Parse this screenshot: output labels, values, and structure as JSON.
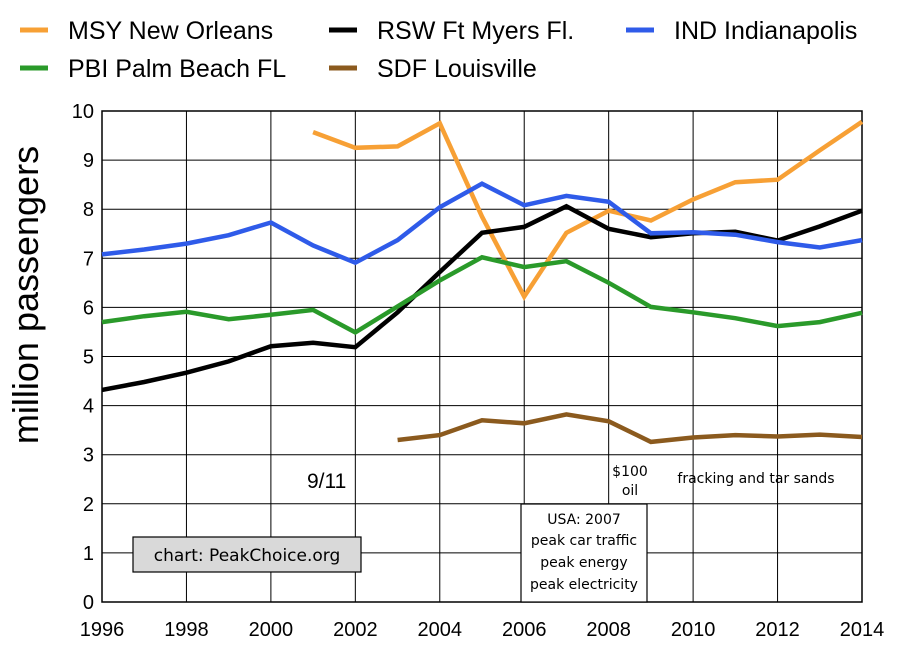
{
  "chart_data": {
    "type": "line",
    "title": "",
    "xlabel": "",
    "ylabel": "million passengers",
    "xlim": [
      1996,
      2014
    ],
    "ylim": [
      0,
      10
    ],
    "x_ticks": [
      "1996",
      "1998",
      "2000",
      "2002",
      "2004",
      "2006",
      "2008",
      "2010",
      "2012",
      "2014"
    ],
    "y_ticks": [
      "0",
      "1",
      "2",
      "3",
      "4",
      "5",
      "6",
      "7",
      "8",
      "9",
      "10"
    ],
    "grid": "vertical and horizontal",
    "legend_placement": "top",
    "series": [
      {
        "name": "MSY New Orleans",
        "color": "#F7A035",
        "x": [
          2001,
          2002,
          2003,
          2004,
          2005,
          2006,
          2007,
          2008,
          2009,
          2010,
          2011,
          2012,
          2013,
          2014
        ],
        "values": [
          9.57,
          9.25,
          9.28,
          9.75,
          7.85,
          6.22,
          7.52,
          7.97,
          7.77,
          8.2,
          8.55,
          8.6,
          9.2,
          9.78
        ]
      },
      {
        "name": "RSW Ft Myers Fl.",
        "color": "#000000",
        "x": [
          1996,
          1997,
          1998,
          1999,
          2000,
          2001,
          2002,
          2003,
          2004,
          2005,
          2006,
          2007,
          2008,
          2009,
          2010,
          2011,
          2012,
          2013,
          2014
        ],
        "values": [
          4.32,
          4.48,
          4.67,
          4.9,
          5.21,
          5.28,
          5.19,
          5.9,
          6.72,
          7.52,
          7.64,
          8.06,
          7.6,
          7.43,
          7.51,
          7.54,
          7.36,
          7.65,
          7.97
        ]
      },
      {
        "name": "IND Indianapolis",
        "color": "#2F5BE9",
        "x": [
          1996,
          1997,
          1998,
          1999,
          2000,
          2001,
          2002,
          2003,
          2004,
          2005,
          2006,
          2007,
          2008,
          2009,
          2010,
          2011,
          2012,
          2013,
          2014
        ],
        "values": [
          7.08,
          7.18,
          7.3,
          7.47,
          7.73,
          7.26,
          6.91,
          7.37,
          8.04,
          8.52,
          8.08,
          8.27,
          8.15,
          7.51,
          7.53,
          7.48,
          7.33,
          7.22,
          7.37
        ]
      },
      {
        "name": "PBI Palm Beach FL",
        "color": "#2A9A2A",
        "x": [
          1996,
          1997,
          1998,
          1999,
          2000,
          2001,
          2002,
          2003,
          2004,
          2005,
          2006,
          2007,
          2008,
          2009,
          2010,
          2011,
          2012,
          2013,
          2014
        ],
        "values": [
          5.7,
          5.82,
          5.91,
          5.76,
          5.85,
          5.95,
          5.49,
          6.02,
          6.55,
          7.02,
          6.82,
          6.94,
          6.5,
          6.01,
          5.9,
          5.78,
          5.62,
          5.7,
          5.89
        ]
      },
      {
        "name": "SDF Louisville",
        "color": "#8B5A1E",
        "x": [
          2003,
          2004,
          2005,
          2006,
          2007,
          2008,
          2009,
          2010,
          2011,
          2012,
          2013,
          2014
        ],
        "values": [
          3.3,
          3.4,
          3.7,
          3.64,
          3.82,
          3.68,
          3.26,
          3.35,
          3.4,
          3.37,
          3.41,
          3.36
        ]
      }
    ],
    "annotations": {
      "nine_eleven": "9/11",
      "oil_line1": "$100",
      "oil_line2": "oil",
      "fracking": "fracking and tar sands",
      "usa_box": [
        "USA: 2007",
        "peak car traffic",
        "peak energy",
        "peak electricity"
      ],
      "credit": "chart: PeakChoice.org"
    }
  }
}
